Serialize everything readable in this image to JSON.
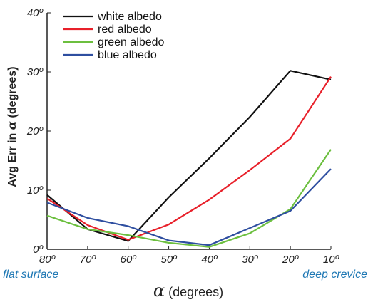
{
  "chart_data": {
    "type": "line",
    "x": [
      80,
      70,
      60,
      50,
      40,
      30,
      20,
      10
    ],
    "x_tick_labels": [
      "80º",
      "70º",
      "60º",
      "50º",
      "40º",
      "30º",
      "20º",
      "10º"
    ],
    "y_tick_labels": [
      "0º",
      "10º",
      "20º",
      "30º",
      "40º"
    ],
    "ylim": [
      0,
      40
    ],
    "xlim": [
      80,
      10
    ],
    "ylabel_prefix": "Avg Err in",
    "ylabel_symbol": "α",
    "ylabel_suffix": "(degrees)",
    "xlabel_symbol": "α",
    "xlabel_suffix": "(degrees)",
    "annotations": {
      "left": "flat surface",
      "right": "deep crevice"
    },
    "legend_position": "top-left",
    "grid": false,
    "series": [
      {
        "name": "white albedo",
        "color": "#111111",
        "values": [
          9.2,
          3.4,
          1.4,
          8.8,
          15.4,
          22.4,
          30.2,
          28.7
        ]
      },
      {
        "name": "red albedo",
        "color": "#e8202a",
        "values": [
          8.6,
          4.1,
          1.6,
          4.2,
          8.4,
          13.4,
          18.7,
          29.2
        ]
      },
      {
        "name": "green albedo",
        "color": "#6cbf3f",
        "values": [
          5.7,
          3.4,
          2.4,
          1.1,
          0.4,
          2.7,
          6.8,
          16.9
        ]
      },
      {
        "name": "blue albedo",
        "color": "#2e4ea0",
        "values": [
          7.9,
          5.3,
          3.9,
          1.5,
          0.7,
          3.6,
          6.5,
          13.6
        ]
      }
    ]
  }
}
